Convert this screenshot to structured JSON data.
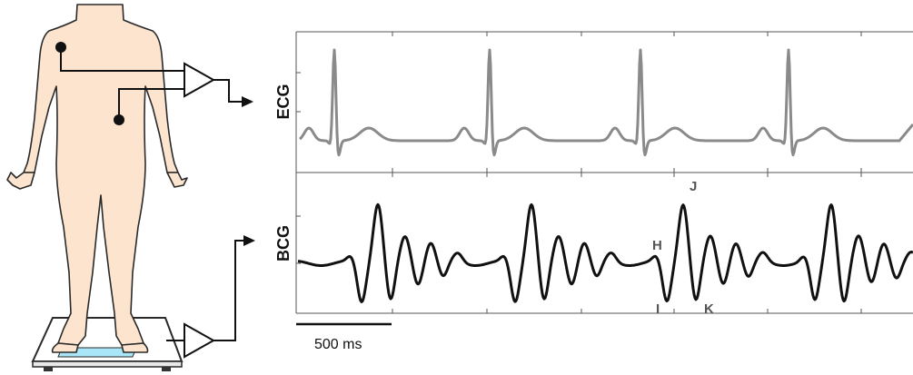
{
  "colors": {
    "skin": "#fde4cf",
    "outline": "#2a2a2a",
    "ecg_trace": "#8a8a8a",
    "bcg_trace": "#111111",
    "scale_pad": "#a9e6f7",
    "axis": "#555555"
  },
  "labels": {
    "ecg_axis": "ECG",
    "bcg_axis": "BCG",
    "scale_bar": "500 ms"
  },
  "waves": {
    "h": "H",
    "i": "I",
    "j": "J",
    "k": "K"
  },
  "icons": {
    "body": "human-body-icon",
    "scale": "weighing-scale-icon",
    "amplifier": "amplifier-triangle-icon",
    "electrode": "electrode-dot-icon"
  }
}
